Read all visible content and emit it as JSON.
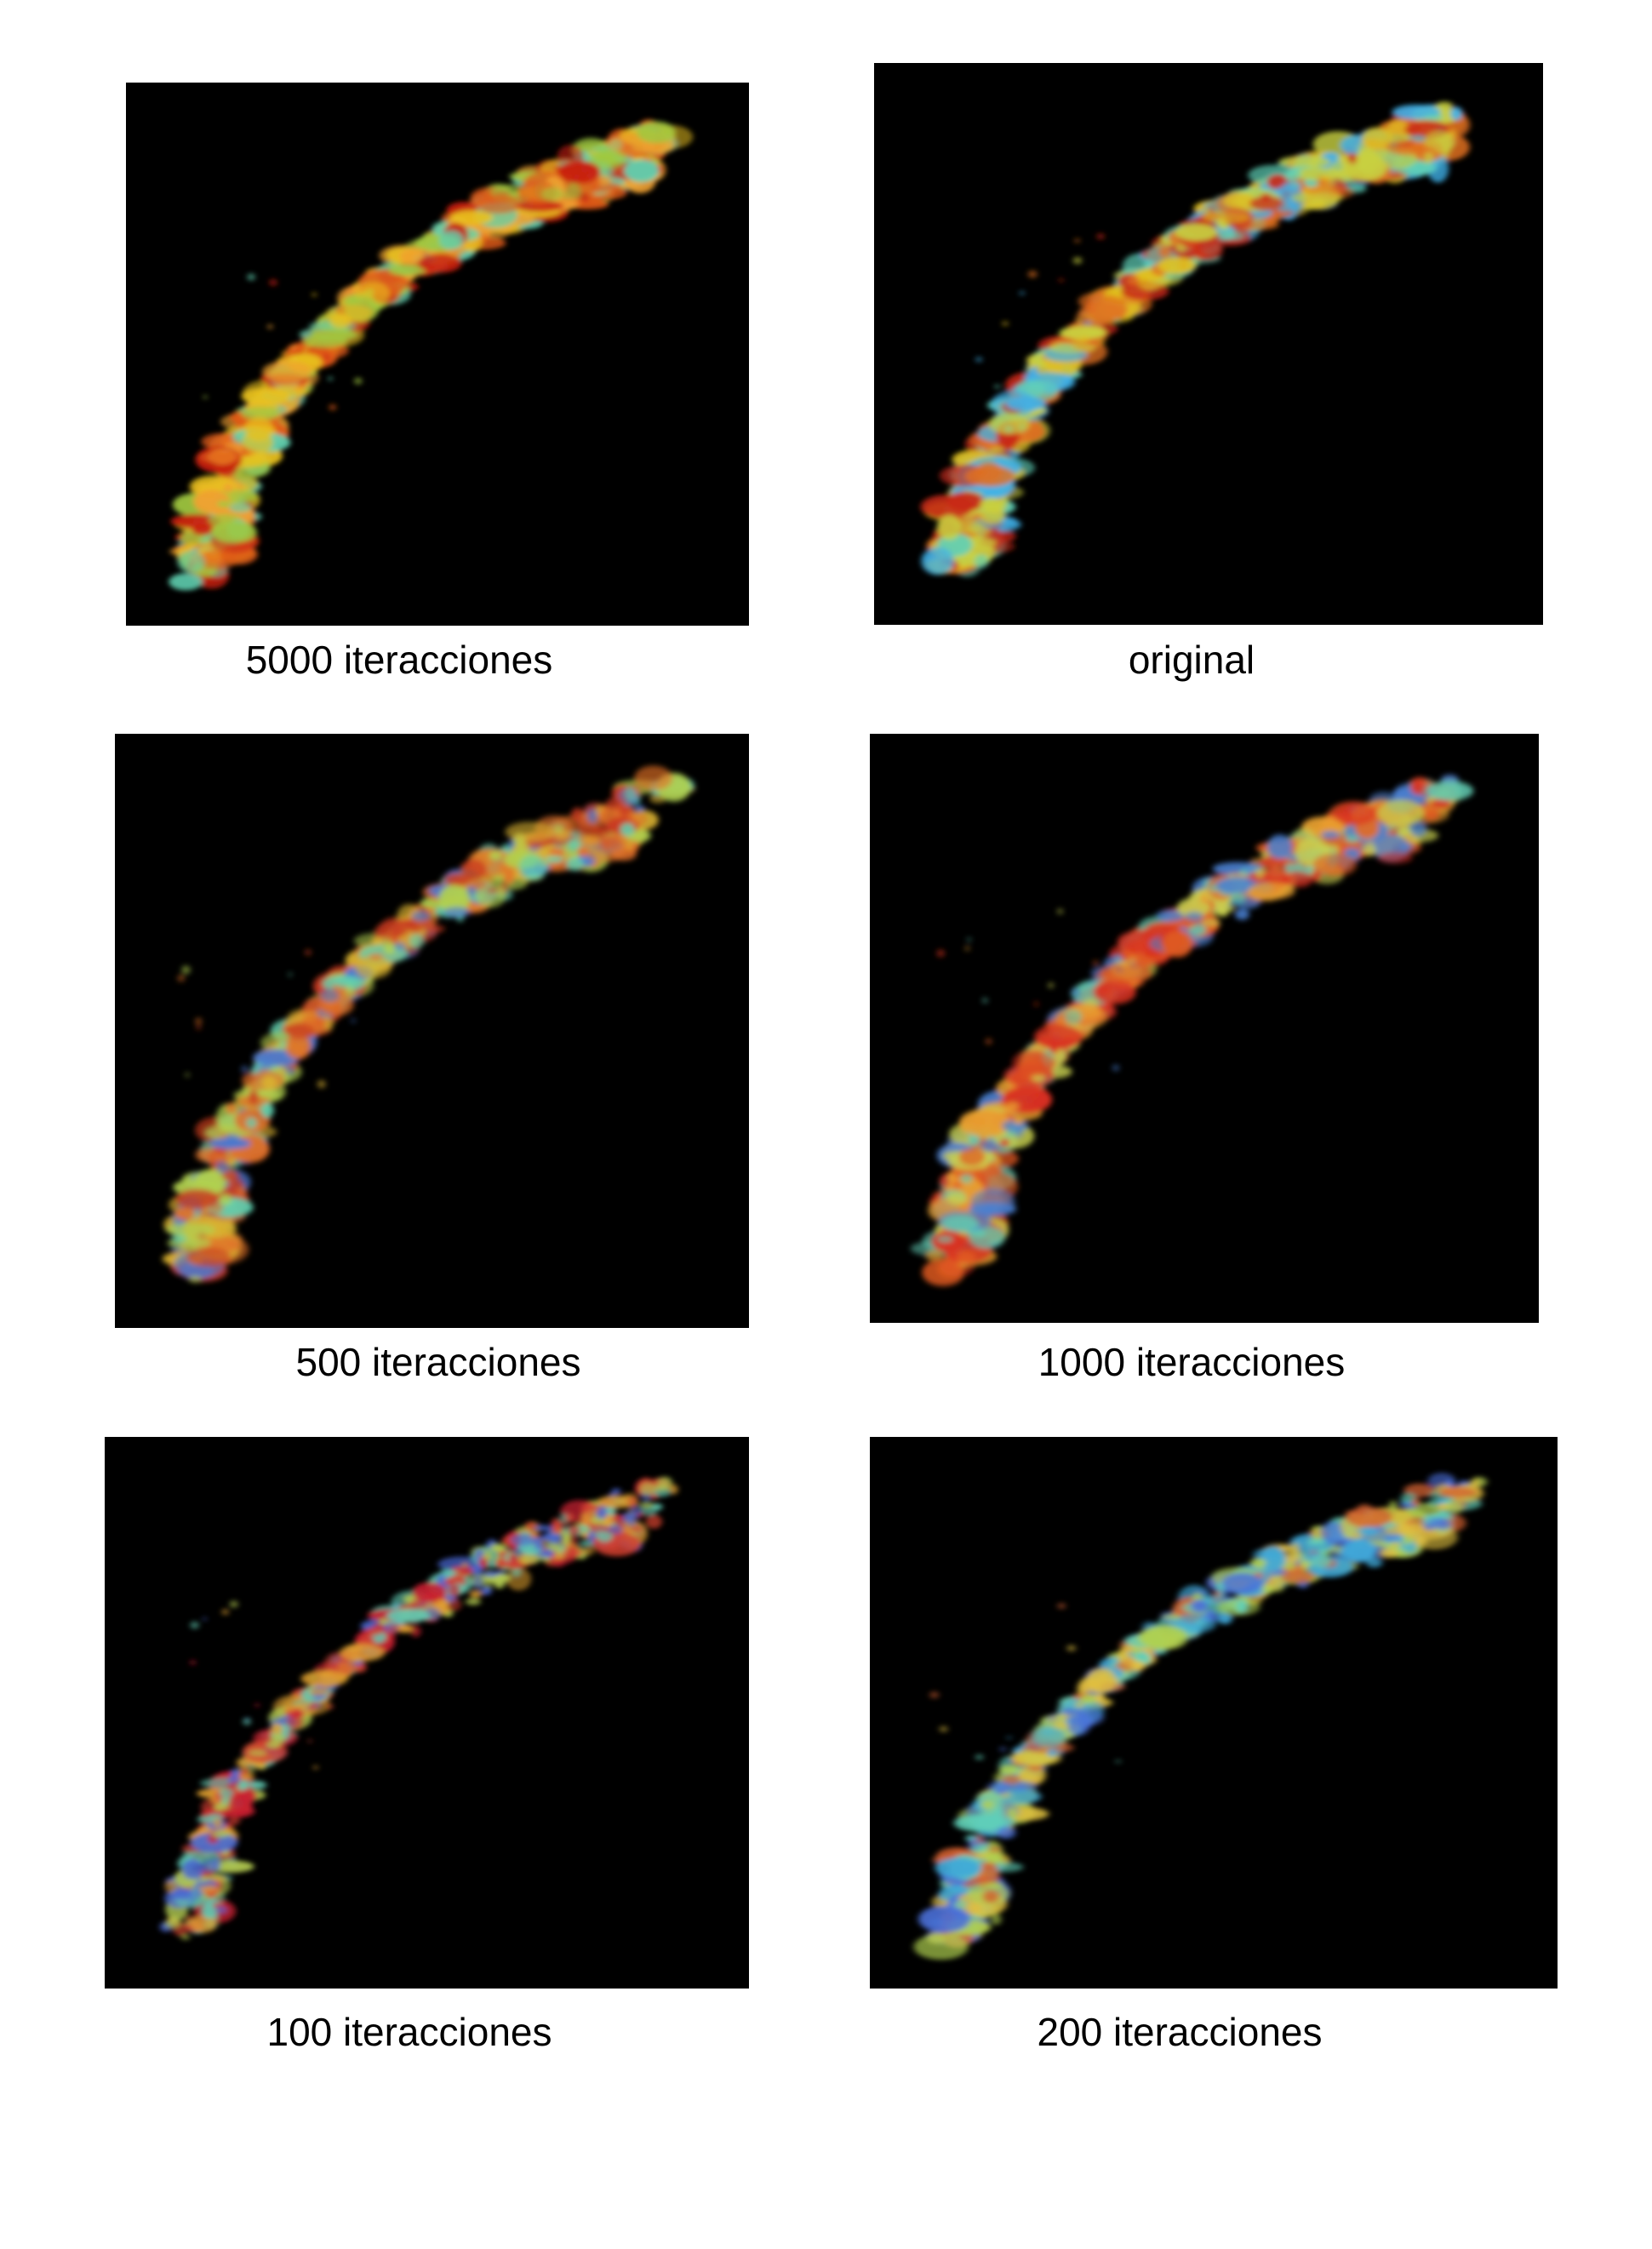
{
  "figure": {
    "panels": [
      {
        "id": "p5000",
        "caption": "5000 iteracciones",
        "palette": [
          "#e8c020",
          "#e05a18",
          "#c82010",
          "#f0a030",
          "#a0c840",
          "#60d0b0"
        ],
        "speckle": 0.15
      },
      {
        "id": "porig",
        "caption": "original",
        "palette": [
          "#e0c020",
          "#c8d040",
          "#60d0b8",
          "#e07020",
          "#c82818",
          "#40b0e8"
        ],
        "speckle": 0.25
      },
      {
        "id": "p500",
        "caption": "500 iteracciones",
        "palette": [
          "#d8b030",
          "#60d0b0",
          "#e07028",
          "#4a78d0",
          "#c83a20",
          "#b0d050"
        ],
        "speckle": 0.6
      },
      {
        "id": "p1000",
        "caption": "1000 iteracciones",
        "palette": [
          "#e05a20",
          "#d83020",
          "#e8a030",
          "#60c8b0",
          "#c8d050",
          "#4a80d0"
        ],
        "speckle": 0.45
      },
      {
        "id": "p100",
        "caption": "100 iteracciones",
        "palette": [
          "#d04030",
          "#4a68d0",
          "#e0a030",
          "#60c8b0",
          "#c82030",
          "#b0c850"
        ],
        "speckle": 0.85
      },
      {
        "id": "p200",
        "caption": "200 iteracciones",
        "palette": [
          "#60d0b8",
          "#4a70d8",
          "#b0d050",
          "#e0c040",
          "#40a8d8",
          "#d06030"
        ],
        "speckle": 0.7
      }
    ]
  }
}
